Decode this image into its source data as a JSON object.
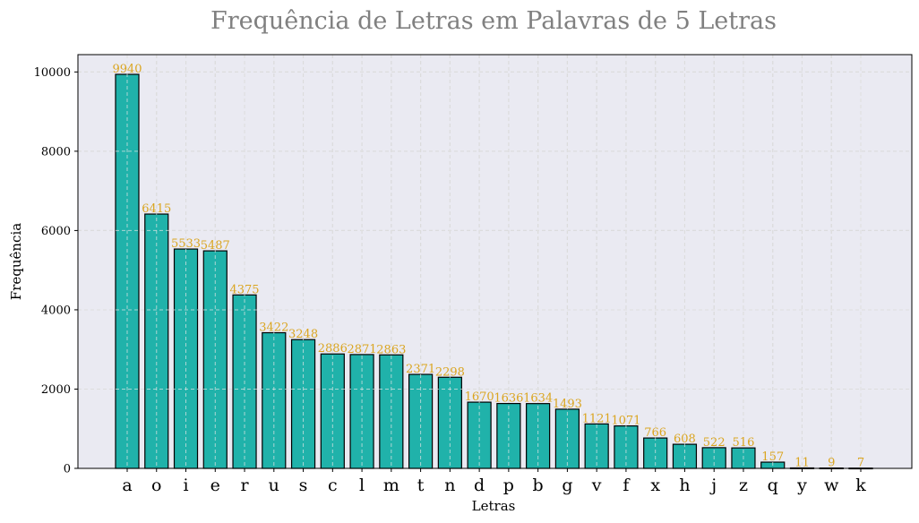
{
  "chart_data": {
    "type": "bar",
    "title": "Frequência de Letras em Palavras de 5 Letras",
    "xlabel": "Letras",
    "ylabel": "Frequência",
    "categories": [
      "a",
      "o",
      "i",
      "e",
      "r",
      "u",
      "s",
      "c",
      "l",
      "m",
      "t",
      "n",
      "d",
      "p",
      "b",
      "g",
      "v",
      "f",
      "x",
      "h",
      "j",
      "z",
      "q",
      "y",
      "w",
      "k"
    ],
    "values": [
      9940,
      6415,
      5533,
      5487,
      4375,
      3422,
      3248,
      2886,
      2871,
      2863,
      2371,
      2298,
      1670,
      1636,
      1634,
      1493,
      1121,
      1071,
      766,
      608,
      522,
      516,
      157,
      11,
      9,
      7
    ],
    "yticks": [
      0,
      2000,
      4000,
      6000,
      8000,
      10000
    ],
    "ylim": [
      0,
      10437
    ],
    "grid": true,
    "colors": {
      "bar": "#20b2aa",
      "bar_edge": "#000000",
      "data_label": "#daa520",
      "plot_background": "#eaeaf2",
      "grid": "#c8c8c8",
      "title": "#808080"
    }
  }
}
